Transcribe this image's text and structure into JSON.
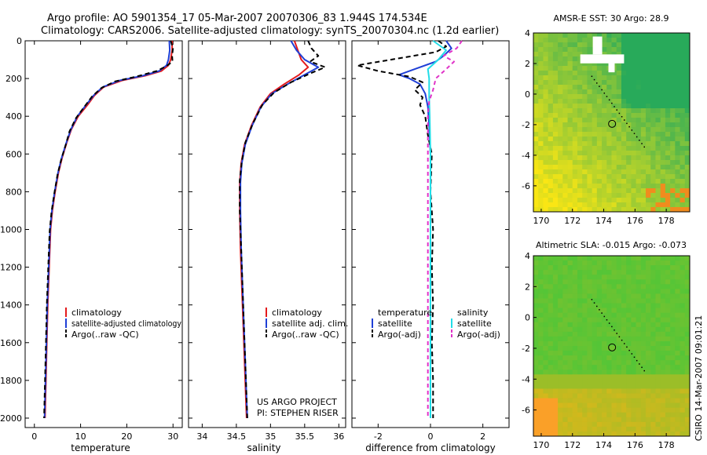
{
  "header": {
    "title_line1": "Argo profile: AO 5901354_17 05-Mar-2007 20070306_83 1.944S 174.534E",
    "title_line2": "Climatology: CARS2006. Satellite-adjusted climatology: synTS_20070304.nc (1.2d earlier)"
  },
  "side_label": "CSIRO 14-Mar-2007 09:01:21",
  "project_note": {
    "line1": "US ARGO PROJECT",
    "line2": "PI: STEPHEN RISER"
  },
  "colors": {
    "climatology": "#e41a1c",
    "satellite": "#1f3fd6",
    "argo": "#000000",
    "salinity_sat": "#22dde8",
    "salinity_argo": "#e033c8"
  },
  "chart_data": [
    {
      "type": "line",
      "name": "temperature-profile",
      "xlabel": "temperature",
      "xlim": [
        -2,
        32
      ],
      "ylim": [
        2050,
        0
      ],
      "x_ticks": [
        0,
        10,
        20,
        30
      ],
      "y_ticks": [
        0,
        200,
        400,
        600,
        800,
        1000,
        1200,
        1400,
        1600,
        1800,
        2000
      ],
      "legend": [
        "climatology",
        "satellite-adjusted climatology",
        "Argo(..raw -QC)"
      ],
      "series": [
        {
          "name": "climatology",
          "color": "#e41a1c",
          "dash": "",
          "points": [
            [
              29.8,
              0
            ],
            [
              29.8,
              50
            ],
            [
              29.5,
              100
            ],
            [
              29.0,
              130
            ],
            [
              27.5,
              160
            ],
            [
              24,
              185
            ],
            [
              19,
              210
            ],
            [
              15,
              245
            ],
            [
              13,
              290
            ],
            [
              11.5,
              340
            ],
            [
              9.5,
              400
            ],
            [
              8,
              470
            ],
            [
              7,
              540
            ],
            [
              6,
              620
            ],
            [
              5.2,
              700
            ],
            [
              4.5,
              800
            ],
            [
              3.9,
              900
            ],
            [
              3.5,
              1000
            ],
            [
              3.2,
              1200
            ],
            [
              2.9,
              1400
            ],
            [
              2.7,
              1600
            ],
            [
              2.5,
              1800
            ],
            [
              2.3,
              2000
            ]
          ]
        },
        {
          "name": "satellite-adjusted climatology",
          "color": "#1f3fd6",
          "dash": "",
          "points": [
            [
              29.2,
              0
            ],
            [
              29.3,
              50
            ],
            [
              29.0,
              100
            ],
            [
              28.6,
              130
            ],
            [
              27.0,
              160
            ],
            [
              23.5,
              185
            ],
            [
              18.5,
              210
            ],
            [
              14.8,
              245
            ],
            [
              12.8,
              290
            ],
            [
              11.2,
              340
            ],
            [
              9.3,
              400
            ],
            [
              7.9,
              470
            ],
            [
              6.9,
              540
            ],
            [
              5.9,
              620
            ],
            [
              5.1,
              700
            ],
            [
              4.4,
              800
            ],
            [
              3.8,
              900
            ],
            [
              3.4,
              1000
            ],
            [
              3.1,
              1200
            ],
            [
              2.8,
              1400
            ],
            [
              2.6,
              1600
            ],
            [
              2.4,
              1800
            ],
            [
              2.2,
              2000
            ]
          ]
        },
        {
          "name": "Argo(..raw -QC)",
          "color": "#000000",
          "dash": "6,4",
          "points": [
            [
              29.5,
              0
            ],
            [
              30.0,
              40
            ],
            [
              29.8,
              80
            ],
            [
              29.9,
              110
            ],
            [
              28.5,
              135
            ],
            [
              26.5,
              160
            ],
            [
              22,
              190
            ],
            [
              17.5,
              215
            ],
            [
              14.5,
              250
            ],
            [
              12.5,
              295
            ],
            [
              10.8,
              350
            ],
            [
              9,
              410
            ],
            [
              7.6,
              480
            ],
            [
              6.8,
              550
            ],
            [
              5.8,
              630
            ],
            [
              5.0,
              710
            ],
            [
              4.3,
              810
            ],
            [
              3.7,
              910
            ],
            [
              3.3,
              1010
            ],
            [
              3.0,
              1200
            ],
            [
              2.7,
              1400
            ],
            [
              2.5,
              1600
            ],
            [
              2.3,
              1800
            ],
            [
              2.1,
              2000
            ]
          ]
        }
      ]
    },
    {
      "type": "line",
      "name": "salinity-profile",
      "xlabel": "salinity",
      "xlim": [
        33.8,
        36.1
      ],
      "ylim": [
        2050,
        0
      ],
      "x_ticks": [
        34,
        34.5,
        35,
        35.5,
        36
      ],
      "legend": [
        "climatology",
        "satellite adj. clim.",
        "Argo(..raw -QC)"
      ],
      "series": [
        {
          "name": "climatology",
          "color": "#e41a1c",
          "dash": "",
          "points": [
            [
              35.35,
              0
            ],
            [
              35.4,
              50
            ],
            [
              35.45,
              100
            ],
            [
              35.55,
              140
            ],
            [
              35.42,
              180
            ],
            [
              35.2,
              230
            ],
            [
              35.0,
              280
            ],
            [
              34.85,
              350
            ],
            [
              34.72,
              450
            ],
            [
              34.62,
              550
            ],
            [
              34.57,
              650
            ],
            [
              34.55,
              750
            ],
            [
              34.55,
              900
            ],
            [
              34.56,
              1100
            ],
            [
              34.58,
              1300
            ],
            [
              34.6,
              1500
            ],
            [
              34.62,
              1700
            ],
            [
              34.64,
              1900
            ],
            [
              34.65,
              2000
            ]
          ]
        },
        {
          "name": "satellite adj. clim.",
          "color": "#1f3fd6",
          "dash": "",
          "points": [
            [
              35.3,
              0
            ],
            [
              35.38,
              50
            ],
            [
              35.5,
              100
            ],
            [
              35.7,
              140
            ],
            [
              35.5,
              180
            ],
            [
              35.25,
              230
            ],
            [
              35.02,
              280
            ],
            [
              34.86,
              350
            ],
            [
              34.73,
              450
            ],
            [
              34.63,
              550
            ],
            [
              34.58,
              650
            ],
            [
              34.56,
              750
            ],
            [
              34.56,
              900
            ],
            [
              34.57,
              1100
            ],
            [
              34.59,
              1300
            ],
            [
              34.61,
              1500
            ],
            [
              34.63,
              1700
            ],
            [
              34.65,
              1900
            ],
            [
              34.66,
              2000
            ]
          ]
        },
        {
          "name": "Argo(..raw -QC)",
          "color": "#000000",
          "dash": "6,4",
          "points": [
            [
              35.55,
              0
            ],
            [
              35.6,
              40
            ],
            [
              35.7,
              80
            ],
            [
              35.58,
              110
            ],
            [
              35.8,
              140
            ],
            [
              35.6,
              170
            ],
            [
              35.3,
              220
            ],
            [
              35.05,
              275
            ],
            [
              34.88,
              340
            ],
            [
              34.74,
              440
            ],
            [
              34.63,
              540
            ],
            [
              34.58,
              640
            ],
            [
              34.55,
              740
            ],
            [
              34.55,
              900
            ],
            [
              34.57,
              1100
            ],
            [
              34.59,
              1300
            ],
            [
              34.61,
              1500
            ],
            [
              34.63,
              1700
            ],
            [
              34.65,
              1900
            ],
            [
              34.66,
              2000
            ]
          ]
        }
      ]
    },
    {
      "type": "line",
      "name": "difference-profile",
      "xlabel": "difference from climatology",
      "xlim": [
        -3,
        3
      ],
      "ylim": [
        2050,
        0
      ],
      "x_ticks": [
        -2,
        0,
        2
      ],
      "legend_left_title": "temperature",
      "legend_right_title": "salinity",
      "legend_left": [
        "satellite",
        "Argo(-adj)"
      ],
      "legend_right": [
        "satellite",
        "Argo(-adj)"
      ],
      "series": [
        {
          "name": "temperature satellite",
          "color": "#1f3fd6",
          "dash": "",
          "points": [
            [
              0.6,
              0
            ],
            [
              0.8,
              40
            ],
            [
              0.5,
              80
            ],
            [
              0.2,
              110
            ],
            [
              -0.6,
              150
            ],
            [
              -1.2,
              180
            ],
            [
              -0.8,
              200
            ],
            [
              -0.4,
              230
            ],
            [
              -0.2,
              280
            ],
            [
              -0.1,
              350
            ],
            [
              -0.05,
              450
            ],
            [
              0,
              600
            ],
            [
              0,
              800
            ],
            [
              0,
              1000
            ]
          ]
        },
        {
          "name": "temperature Argo(-adj)",
          "color": "#000000",
          "dash": "6,4",
          "points": [
            [
              0.3,
              0
            ],
            [
              0.6,
              30
            ],
            [
              0.2,
              60
            ],
            [
              -1.5,
              100
            ],
            [
              -2.8,
              130
            ],
            [
              -2.0,
              160
            ],
            [
              -0.8,
              190
            ],
            [
              -0.3,
              220
            ],
            [
              -0.6,
              260
            ],
            [
              -0.3,
              300
            ],
            [
              -0.4,
              340
            ],
            [
              -0.2,
              400
            ],
            [
              -0.1,
              500
            ],
            [
              0.05,
              600
            ],
            [
              0,
              800
            ],
            [
              0.1,
              1000
            ],
            [
              0.05,
              1200
            ],
            [
              0.1,
              1400
            ],
            [
              0.05,
              1600
            ],
            [
              0.1,
              1800
            ],
            [
              0.1,
              2000
            ]
          ]
        },
        {
          "name": "salinity satellite",
          "color": "#22dde8",
          "dash": "",
          "points": [
            [
              0.1,
              0
            ],
            [
              0.6,
              50
            ],
            [
              0.3,
              100
            ],
            [
              -0.1,
              150
            ],
            [
              -0.05,
              200
            ],
            [
              -0.05,
              300
            ],
            [
              -0.03,
              400
            ],
            [
              0,
              600
            ],
            [
              0,
              800
            ],
            [
              0,
              1000
            ],
            [
              0,
              1200
            ],
            [
              0,
              1400
            ],
            [
              0,
              1600
            ],
            [
              0,
              1800
            ],
            [
              0,
              2000
            ]
          ]
        },
        {
          "name": "salinity Argo(-adj)",
          "color": "#e033c8",
          "dash": "5,4",
          "points": [
            [
              1.2,
              0
            ],
            [
              1.0,
              40
            ],
            [
              0.5,
              80
            ],
            [
              0.9,
              110
            ],
            [
              0.6,
              150
            ],
            [
              0.2,
              200
            ],
            [
              0.1,
              260
            ],
            [
              -0.05,
              320
            ],
            [
              -0.1,
              400
            ],
            [
              -0.1,
              500
            ],
            [
              -0.1,
              700
            ],
            [
              -0.1,
              900
            ],
            [
              -0.1,
              1100
            ],
            [
              -0.1,
              1300
            ],
            [
              -0.1,
              1500
            ],
            [
              -0.1,
              1700
            ],
            [
              -0.1,
              1900
            ],
            [
              -0.1,
              2000
            ]
          ]
        }
      ]
    },
    {
      "type": "heatmap",
      "name": "sst-map",
      "title": "AMSR-E SST: 30 Argo: 28.9",
      "xlim": [
        169.5,
        179.5
      ],
      "ylim": [
        -7.7,
        4
      ],
      "x_ticks": [
        170,
        172,
        174,
        176,
        178
      ],
      "y_ticks": [
        4,
        2,
        0,
        -2,
        -4,
        -6
      ],
      "marker": {
        "lon": 174.534,
        "lat": -1.944
      }
    },
    {
      "type": "heatmap",
      "name": "sla-map",
      "title": "Altimetric SLA: -0.015 Argo: -0.073",
      "xlim": [
        169.5,
        179.5
      ],
      "ylim": [
        -7.7,
        4
      ],
      "x_ticks": [
        170,
        172,
        174,
        176,
        178
      ],
      "y_ticks": [
        4,
        2,
        0,
        -2,
        -4,
        -6
      ],
      "marker": {
        "lon": 174.534,
        "lat": -1.944
      }
    }
  ]
}
